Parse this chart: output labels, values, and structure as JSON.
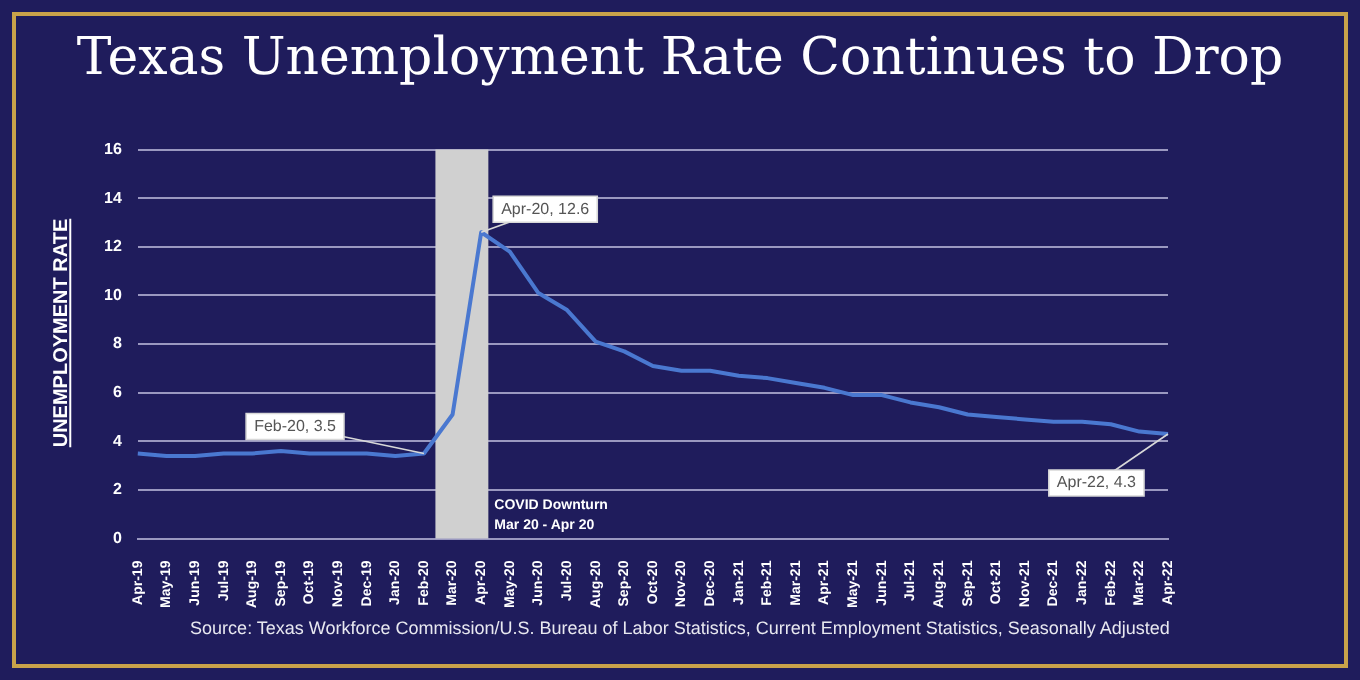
{
  "chart_data": {
    "type": "line",
    "title": "Texas Unemployment Rate Continues to Drop",
    "ylabel": "UNEMPLOYMENT RATE",
    "categories": [
      "Apr-19",
      "May-19",
      "Jun-19",
      "Jul-19",
      "Aug-19",
      "Sep-19",
      "Oct-19",
      "Nov-19",
      "Dec-19",
      "Jan-20",
      "Feb-20",
      "Mar-20",
      "Apr-20",
      "May-20",
      "Jun-20",
      "Jul-20",
      "Aug-20",
      "Sep-20",
      "Oct-20",
      "Nov-20",
      "Dec-20",
      "Jan-21",
      "Feb-21",
      "Mar-21",
      "Apr-21",
      "May-21",
      "Jun-21",
      "Jul-21",
      "Aug-21",
      "Sep-21",
      "Oct-21",
      "Nov-21",
      "Dec-21",
      "Jan-22",
      "Feb-22",
      "Mar-22",
      "Apr-22"
    ],
    "series": [
      {
        "color": "#4a78d0",
        "values": [
          3.5,
          3.4,
          3.4,
          3.5,
          3.5,
          3.6,
          3.5,
          3.5,
          3.5,
          3.4,
          3.5,
          5.1,
          12.6,
          11.8,
          10.1,
          9.4,
          8.1,
          7.7,
          7.1,
          6.9,
          6.9,
          6.7,
          6.6,
          6.4,
          6.2,
          5.9,
          5.9,
          5.6,
          5.4,
          5.1,
          5.0,
          4.9,
          4.8,
          4.8,
          4.7,
          4.4,
          4.3
        ]
      }
    ],
    "ylim": [
      0,
      16
    ],
    "yticks": [
      0,
      2,
      4,
      6,
      8,
      10,
      12,
      14,
      16
    ],
    "grid": "y",
    "legend": false,
    "marker": "none",
    "line_style": "solid",
    "bands": [
      {
        "axis": "x",
        "from": "Mar-20",
        "to": "Apr-20",
        "label": "COVID Downturn\nMar 20 - Apr 20",
        "color": "#d0d0d0"
      }
    ],
    "annotations": [
      {
        "text": "Feb-20, 3.5",
        "x": "Feb-20",
        "y": 3.5
      },
      {
        "text": "Apr-20, 12.6",
        "x": "Apr-20",
        "y": 12.6
      },
      {
        "text": "Apr-22, 4.3",
        "x": "Apr-22",
        "y": 4.3
      },
      "Source: Texas Workforce Commission/U.S. Bureau of Labor Statistics, Current Employment Statistics, Seasonally Adjusted"
    ]
  }
}
